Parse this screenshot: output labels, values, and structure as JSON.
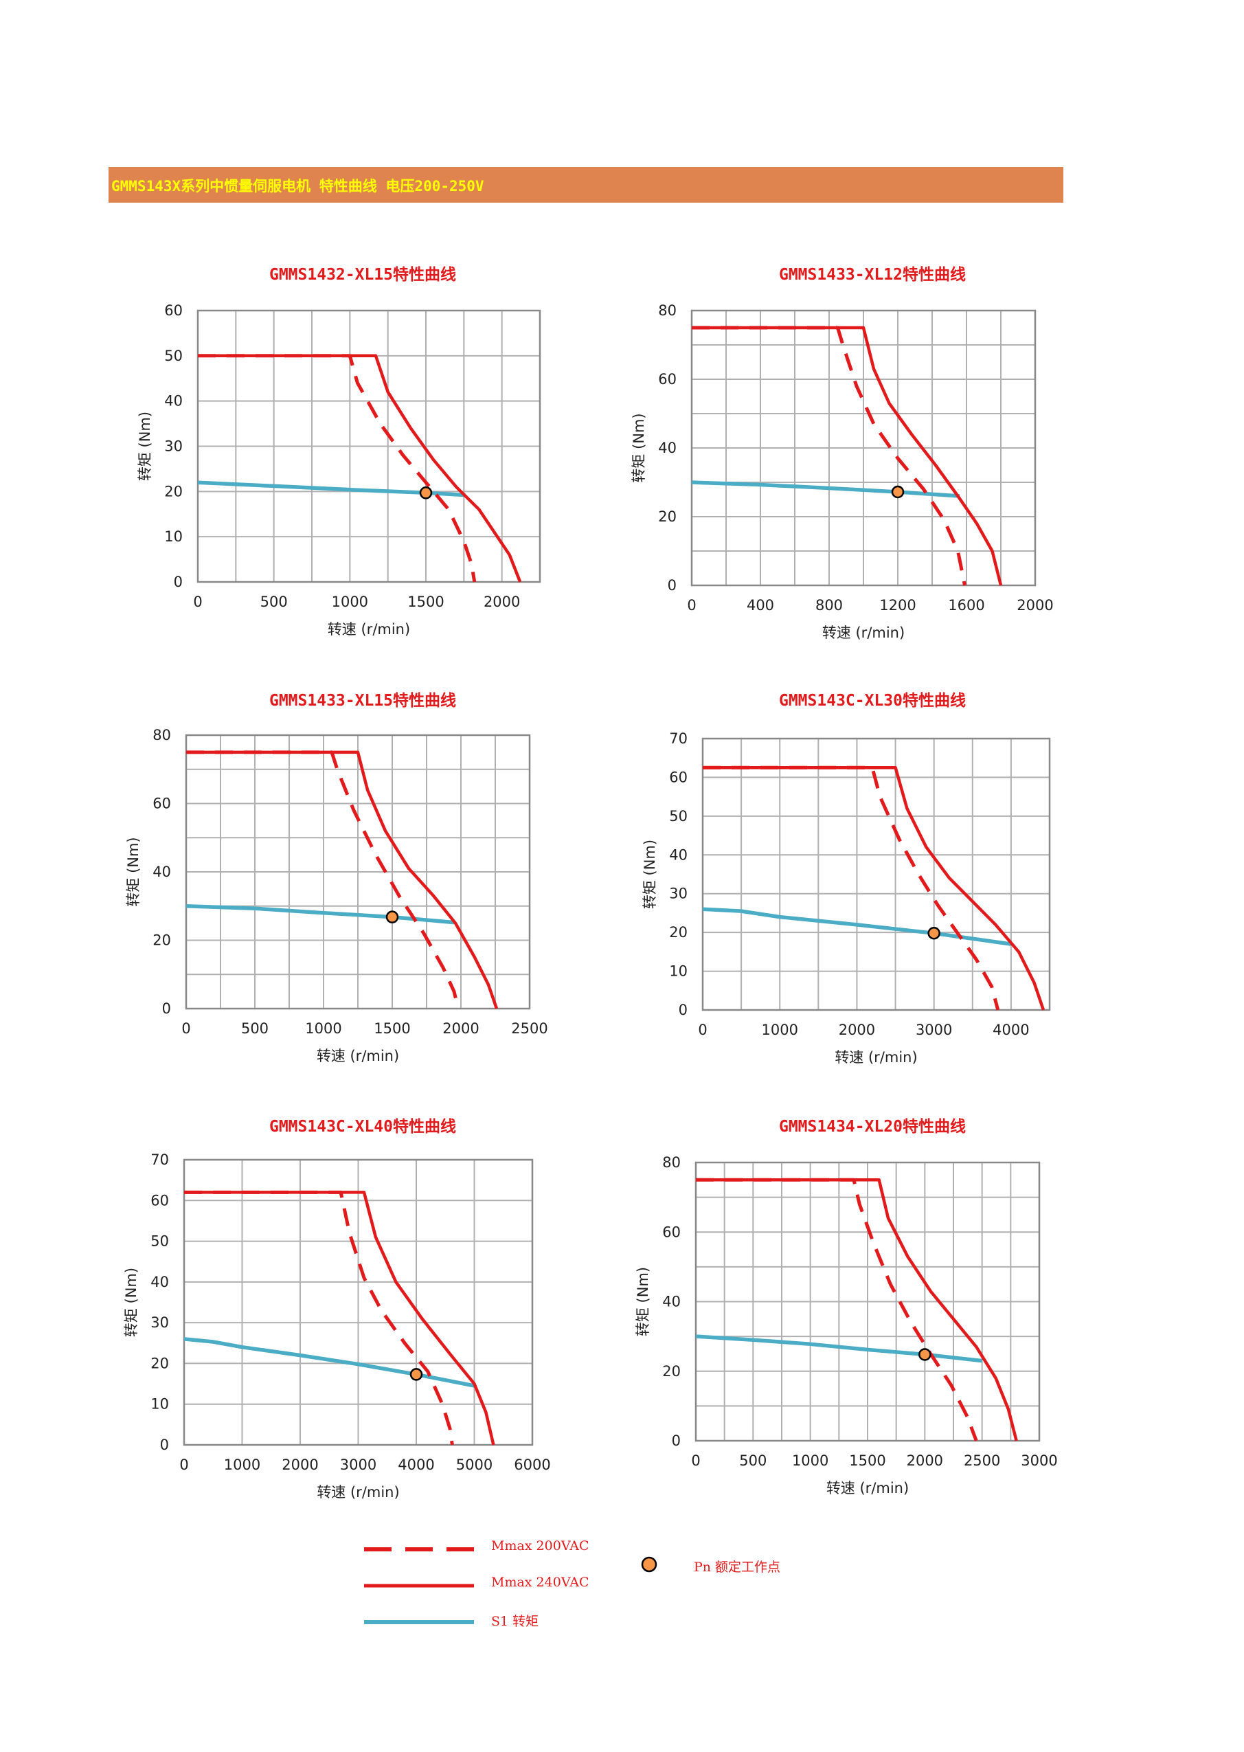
{
  "banner": {
    "title": "GMMS143X系列中惯量伺服电机 特性曲线 电压200-250V",
    "color": "#e0844f",
    "text_color": "#ffff00"
  },
  "colors": {
    "mmax_200": "#e31a1c",
    "mmax_240": "#e31a1c",
    "s1": "#4bacc6",
    "rated_point": "#f79646",
    "grid": "#b0b0b0",
    "title": "#e31a1c"
  },
  "chart_data": [
    {
      "type": "line",
      "title": "GMMS1432-XL15特性曲线",
      "xlabel": "转速 (r/min)",
      "ylabel": "转矩 (Nm)",
      "xlim": [
        0,
        2250
      ],
      "ylim": [
        0,
        60
      ],
      "xticks": [
        0,
        500,
        1000,
        1500,
        2000
      ],
      "xtick_labels": [
        "0",
        "500",
        "1000",
        "1500",
        "2000"
      ],
      "yticks": [
        0,
        10,
        20,
        30,
        40,
        50,
        60
      ],
      "ytick_labels": [
        "0",
        "10",
        "20",
        "30",
        "40",
        "50",
        "60"
      ],
      "grid_step_x": 250,
      "grid_step_y": 10,
      "series": [
        {
          "name": "Mmax 200VAC",
          "style": "dashed",
          "points": [
            [
              0,
              50
            ],
            [
              1000,
              50
            ],
            [
              1050,
              44
            ],
            [
              1200,
              35
            ],
            [
              1350,
              28
            ],
            [
              1500,
              22
            ],
            [
              1650,
              16
            ],
            [
              1750,
              9
            ],
            [
              1800,
              4
            ],
            [
              1820,
              0
            ]
          ]
        },
        {
          "name": "Mmax 240VAC",
          "style": "solid",
          "points": [
            [
              0,
              50
            ],
            [
              1170,
              50
            ],
            [
              1250,
              42
            ],
            [
              1400,
              34
            ],
            [
              1550,
              27
            ],
            [
              1700,
              21
            ],
            [
              1850,
              16
            ],
            [
              1950,
              11
            ],
            [
              2050,
              6
            ],
            [
              2120,
              0
            ]
          ]
        },
        {
          "name": "S1 转矩",
          "style": "s1",
          "points": [
            [
              0,
              22
            ],
            [
              500,
              21.2
            ],
            [
              1000,
              20.4
            ],
            [
              1500,
              19.7
            ],
            [
              1760,
              19.2
            ]
          ]
        }
      ],
      "rated_point": [
        1500,
        19.7
      ]
    },
    {
      "type": "line",
      "title": "GMMS1433-XL12特性曲线",
      "xlabel": "转速 (r/min)",
      "ylabel": "转矩 (Nm)",
      "xlim": [
        0,
        2000
      ],
      "ylim": [
        0,
        80
      ],
      "xticks": [
        0,
        400,
        800,
        1200,
        1600,
        2000
      ],
      "xtick_labels": [
        "0",
        "400",
        "800",
        "1200",
        "1600",
        "2000"
      ],
      "yticks": [
        0,
        20,
        40,
        60,
        80
      ],
      "ytick_labels": [
        "0",
        "20",
        "40",
        "60",
        "80"
      ],
      "grid_step_x": 200,
      "grid_step_y": 10,
      "series": [
        {
          "name": "Mmax 200VAC",
          "style": "dashed",
          "points": [
            [
              0,
              75
            ],
            [
              850,
              75
            ],
            [
              880,
              70
            ],
            [
              960,
              58
            ],
            [
              1060,
              47
            ],
            [
              1200,
              37
            ],
            [
              1350,
              28
            ],
            [
              1470,
              19
            ],
            [
              1550,
              10
            ],
            [
              1590,
              0
            ]
          ]
        },
        {
          "name": "Mmax 240VAC",
          "style": "solid",
          "points": [
            [
              0,
              75
            ],
            [
              1000,
              75
            ],
            [
              1060,
              63
            ],
            [
              1150,
              53
            ],
            [
              1280,
              44
            ],
            [
              1420,
              35
            ],
            [
              1550,
              26
            ],
            [
              1660,
              18
            ],
            [
              1750,
              10
            ],
            [
              1800,
              0
            ]
          ]
        },
        {
          "name": "S1 转矩",
          "style": "s1",
          "points": [
            [
              0,
              30
            ],
            [
              400,
              29.3
            ],
            [
              800,
              28.3
            ],
            [
              1200,
              27.2
            ],
            [
              1560,
              26
            ]
          ]
        }
      ],
      "rated_point": [
        1200,
        27.2
      ]
    },
    {
      "type": "line",
      "title": "GMMS1433-XL15特性曲线",
      "xlabel": "转速 (r/min)",
      "ylabel": "转矩 (Nm)",
      "xlim": [
        0,
        2500
      ],
      "ylim": [
        0,
        80
      ],
      "xticks": [
        0,
        500,
        1000,
        1500,
        2000,
        2500
      ],
      "xtick_labels": [
        "0",
        "500",
        "1000",
        "1500",
        "2000",
        "2500"
      ],
      "yticks": [
        0,
        20,
        40,
        60,
        80
      ],
      "ytick_labels": [
        "0",
        "20",
        "40",
        "60",
        "80"
      ],
      "grid_step_x": 250,
      "grid_step_y": 10,
      "series": [
        {
          "name": "Mmax 200VAC",
          "style": "dashed",
          "points": [
            [
              0,
              75
            ],
            [
              1060,
              75
            ],
            [
              1100,
              70
            ],
            [
              1220,
              58
            ],
            [
              1380,
              45
            ],
            [
              1550,
              33
            ],
            [
              1730,
              22
            ],
            [
              1870,
              12
            ],
            [
              1950,
              5
            ],
            [
              1980,
              0
            ]
          ]
        },
        {
          "name": "Mmax 240VAC",
          "style": "solid",
          "points": [
            [
              0,
              75
            ],
            [
              1250,
              75
            ],
            [
              1320,
              64
            ],
            [
              1450,
              52
            ],
            [
              1620,
              41
            ],
            [
              1800,
              33
            ],
            [
              1960,
              25
            ],
            [
              2100,
              15
            ],
            [
              2200,
              7
            ],
            [
              2260,
              0
            ]
          ]
        },
        {
          "name": "S1 转矩",
          "style": "s1",
          "points": [
            [
              0,
              30
            ],
            [
              500,
              29.3
            ],
            [
              1000,
              28
            ],
            [
              1500,
              26.8
            ],
            [
              1950,
              25.2
            ]
          ]
        }
      ],
      "rated_point": [
        1500,
        26.8
      ]
    },
    {
      "type": "line",
      "title": "GMMS143C-XL30特性曲线",
      "xlabel": "转速 (r/min)",
      "ylabel": "转矩 (Nm)",
      "xlim": [
        0,
        4500
      ],
      "ylim": [
        0,
        70
      ],
      "xticks": [
        0,
        1000,
        2000,
        3000,
        4000
      ],
      "xtick_labels": [
        "0",
        "1000",
        "2000",
        "3000",
        "4000"
      ],
      "yticks": [
        0,
        10,
        20,
        30,
        40,
        50,
        60,
        70
      ],
      "ytick_labels": [
        "0",
        "10",
        "20",
        "30",
        "40",
        "50",
        "60",
        "70"
      ],
      "grid_step_x": 500,
      "grid_step_y": 10,
      "series": [
        {
          "name": "Mmax 200VAC",
          "style": "dashed",
          "points": [
            [
              0,
              62.5
            ],
            [
              2200,
              62.5
            ],
            [
              2300,
              55
            ],
            [
              2550,
              44
            ],
            [
              2800,
              35
            ],
            [
              3050,
              27
            ],
            [
              3300,
              20
            ],
            [
              3550,
              13
            ],
            [
              3750,
              6
            ],
            [
              3830,
              0
            ]
          ]
        },
        {
          "name": "Mmax 240VAC",
          "style": "solid",
          "points": [
            [
              0,
              62.5
            ],
            [
              2500,
              62.5
            ],
            [
              2650,
              52
            ],
            [
              2900,
              42
            ],
            [
              3200,
              34
            ],
            [
              3500,
              28
            ],
            [
              3800,
              22
            ],
            [
              4100,
              15
            ],
            [
              4300,
              7
            ],
            [
              4420,
              0
            ]
          ]
        },
        {
          "name": "S1 转矩",
          "style": "s1",
          "points": [
            [
              0,
              26
            ],
            [
              500,
              25.5
            ],
            [
              1000,
              24
            ],
            [
              2000,
              22
            ],
            [
              3000,
              19.8
            ],
            [
              4000,
              17
            ]
          ]
        }
      ],
      "rated_point": [
        3000,
        19.8
      ]
    },
    {
      "type": "line",
      "title": "GMMS143C-XL40特性曲线",
      "xlabel": "转速 (r/min)",
      "ylabel": "转矩 (Nm)",
      "xlim": [
        0,
        6000
      ],
      "ylim": [
        0,
        70
      ],
      "xticks": [
        0,
        1000,
        2000,
        3000,
        4000,
        5000,
        6000
      ],
      "xtick_labels": [
        "0",
        "1000",
        "2000",
        "3000",
        "4000",
        "5000",
        "6000"
      ],
      "yticks": [
        0,
        10,
        20,
        30,
        40,
        50,
        60,
        70
      ],
      "ytick_labels": [
        "0",
        "10",
        "20",
        "30",
        "40",
        "50",
        "60",
        "70"
      ],
      "grid_step_x": 1000,
      "grid_step_y": 10,
      "series": [
        {
          "name": "Mmax 200VAC",
          "style": "dashed",
          "points": [
            [
              0,
              62
            ],
            [
              2700,
              62
            ],
            [
              2850,
              52
            ],
            [
              3100,
              41
            ],
            [
              3400,
              33
            ],
            [
              3800,
              25
            ],
            [
              4200,
              18
            ],
            [
              4450,
              10
            ],
            [
              4580,
              4
            ],
            [
              4620,
              0
            ]
          ]
        },
        {
          "name": "Mmax 240VAC",
          "style": "solid",
          "points": [
            [
              0,
              62
            ],
            [
              3100,
              62
            ],
            [
              3300,
              51
            ],
            [
              3650,
              40
            ],
            [
              4100,
              31
            ],
            [
              4600,
              22
            ],
            [
              5000,
              15
            ],
            [
              5200,
              8
            ],
            [
              5330,
              0
            ]
          ]
        },
        {
          "name": "S1 转矩",
          "style": "s1",
          "points": [
            [
              0,
              26
            ],
            [
              500,
              25.3
            ],
            [
              1000,
              24
            ],
            [
              2000,
              22
            ],
            [
              3000,
              19.8
            ],
            [
              4000,
              17.3
            ],
            [
              5000,
              14.5
            ]
          ]
        }
      ],
      "rated_point": [
        4000,
        17.3
      ]
    },
    {
      "type": "line",
      "title": "GMMS1434-XL20特性曲线",
      "xlabel": "转速 (r/min)",
      "ylabel": "转矩 (Nm)",
      "xlim": [
        0,
        3000
      ],
      "ylim": [
        0,
        80
      ],
      "xticks": [
        0,
        500,
        1000,
        1500,
        2000,
        2500,
        3000
      ],
      "xtick_labels": [
        "0",
        "500",
        "1000",
        "1500",
        "2000",
        "2500",
        "3000"
      ],
      "yticks": [
        0,
        20,
        40,
        60,
        80
      ],
      "ytick_labels": [
        "0",
        "20",
        "40",
        "60",
        "80"
      ],
      "grid_step_x": 250,
      "grid_step_y": 10,
      "series": [
        {
          "name": "Mmax 200VAC",
          "style": "dashed",
          "points": [
            [
              0,
              75
            ],
            [
              1380,
              75
            ],
            [
              1430,
              68
            ],
            [
              1550,
              57
            ],
            [
              1700,
              45
            ],
            [
              1880,
              34
            ],
            [
              2050,
              25
            ],
            [
              2230,
              16
            ],
            [
              2370,
              7
            ],
            [
              2450,
              0
            ]
          ]
        },
        {
          "name": "Mmax 240VAC",
          "style": "solid",
          "points": [
            [
              0,
              75
            ],
            [
              1600,
              75
            ],
            [
              1680,
              64
            ],
            [
              1850,
              53
            ],
            [
              2050,
              43
            ],
            [
              2250,
              35
            ],
            [
              2450,
              27
            ],
            [
              2620,
              18
            ],
            [
              2730,
              9
            ],
            [
              2800,
              0
            ]
          ]
        },
        {
          "name": "S1 转矩",
          "style": "s1",
          "points": [
            [
              0,
              30
            ],
            [
              500,
              29
            ],
            [
              1000,
              27.8
            ],
            [
              1500,
              26.2
            ],
            [
              2000,
              24.8
            ],
            [
              2500,
              23
            ]
          ]
        }
      ],
      "rated_point": [
        2000,
        24.8
      ]
    }
  ],
  "legend": {
    "mmax_200_label": "Mmax 200VAC",
    "mmax_240_label": "Mmax 240VAC",
    "s1_label": "S1 转矩",
    "rated_label": "Pn 额定工作点"
  }
}
